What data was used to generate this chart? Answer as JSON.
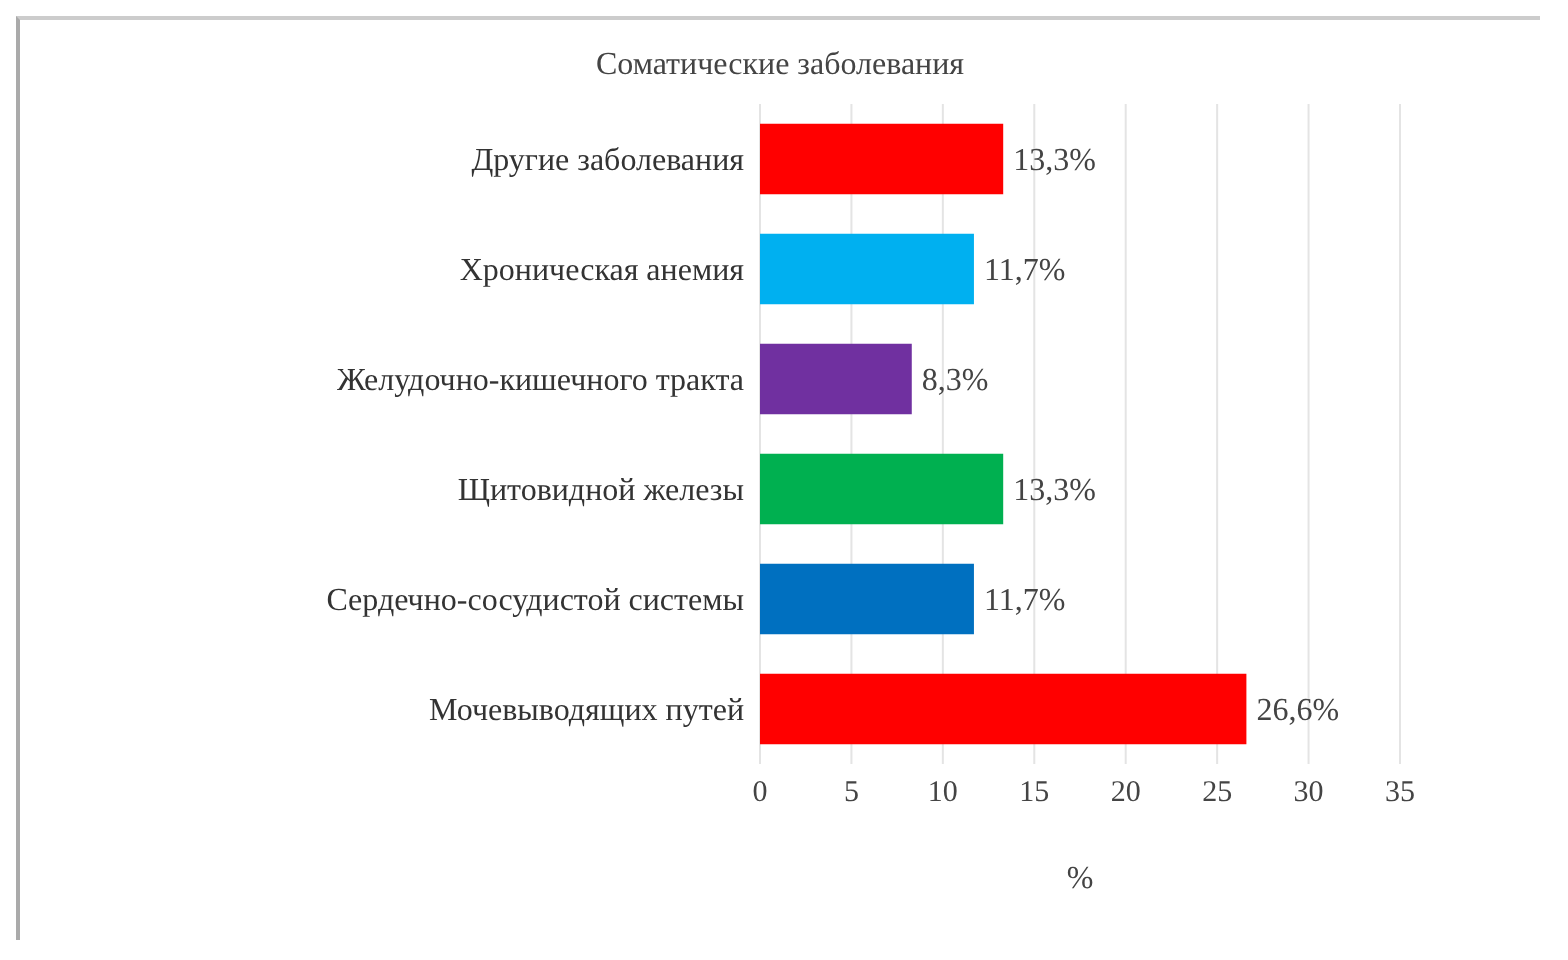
{
  "chart_data": {
    "type": "bar",
    "orientation": "horizontal",
    "title": "Соматические заболевания",
    "xlabel": "%",
    "categories": [
      "Другие заболевания",
      "Хроническая анемия",
      "Желудочно-кишечного тракта",
      "Щитовидной железы",
      "Сердечно-сосудистой системы",
      "Мочевыводящих путей"
    ],
    "values": [
      13.3,
      11.7,
      8.3,
      13.3,
      11.7,
      26.6
    ],
    "colors": [
      "#ff0000",
      "#00b0f0",
      "#7030a0",
      "#00b050",
      "#0070c0",
      "#ff0000"
    ],
    "value_labels": [
      "13,3%",
      "11,7%",
      "8,3%",
      "13,3%",
      "11,7%",
      "26,6%"
    ],
    "xlim": [
      0,
      35
    ],
    "xticks": [
      0,
      5,
      10,
      15,
      20,
      25,
      30,
      35
    ],
    "grid": "x"
  }
}
